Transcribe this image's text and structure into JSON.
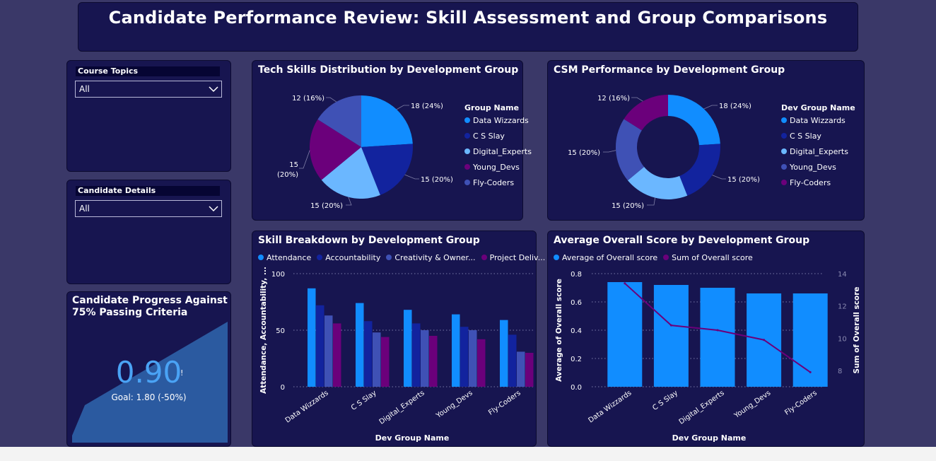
{
  "title": "Candidate Performance Review: Skill Assessment and Group Comparisons",
  "slicers": [
    {
      "label": "Course Topics",
      "value": "All"
    },
    {
      "label": "Candidate Details",
      "value": "All"
    }
  ],
  "kpi": {
    "title": "Candidate Progress Against 75% Passing Criteria",
    "value": "0.90",
    "goal": "Goal: 1.80 (-50%)",
    "colors": {
      "area": "#2b5aa0",
      "value": "#4aa3f5"
    }
  },
  "colors": {
    "Data Wizzards": "#118dff",
    "C S Slay": "#12239e",
    "Digital_Experts": "#6bb7ff",
    "Young_Devs": "#6b007b",
    "Fly-Coders": "#3f51b5"
  },
  "chart_data": [
    {
      "type": "pie",
      "title": "Tech Skills Distribution by Development Group",
      "legend_title": "Group Name",
      "legend": [
        "Data Wizzards",
        "C S Slay",
        "Digital_Experts",
        "Young_Devs",
        "Fly-Coders"
      ],
      "slices": [
        {
          "name": "Data Wizzards",
          "value": 18,
          "label": "18 (24%)",
          "color": "#118dff"
        },
        {
          "name": "C S Slay",
          "value": 15,
          "label": "15 (20%)",
          "color": "#12239e"
        },
        {
          "name": "Digital_Experts",
          "value": 15,
          "label": "15 (20%)",
          "color": "#6bb7ff"
        },
        {
          "name": "Young_Devs",
          "value": 15,
          "label": "15 (20%)",
          "color": "#6b007b"
        },
        {
          "name": "Fly-Coders",
          "value": 12,
          "label": "12 (16%)",
          "color": "#3f51b5"
        }
      ]
    },
    {
      "type": "pie",
      "subtype": "donut",
      "title": "CSM Performance by Development Group",
      "legend_title": "Dev Group Name",
      "legend": [
        "Data Wizzards",
        "C S Slay",
        "Digital_Experts",
        "Young_Devs",
        "Fly-Coders"
      ],
      "slices": [
        {
          "name": "Data Wizzards",
          "value": 18,
          "label": "18 (24%)",
          "color": "#118dff"
        },
        {
          "name": "C S Slay",
          "value": 15,
          "label": "15 (20%)",
          "color": "#12239e"
        },
        {
          "name": "Digital_Experts",
          "value": 15,
          "label": "15 (20%)",
          "color": "#6bb7ff"
        },
        {
          "name": "Young_Devs",
          "value": 15,
          "label": "15 (20%)",
          "color": "#3f51b5"
        },
        {
          "name": "Fly-Coders",
          "value": 12,
          "label": "12 (16%)",
          "color": "#6b007b"
        }
      ]
    },
    {
      "type": "bar",
      "title": "Skill Breakdown by Development Group",
      "xlabel": "Dev Group Name",
      "ylabel": "Attendance, Accountability, ...",
      "ylim": [
        0,
        100
      ],
      "yticks": [
        0,
        50,
        100
      ],
      "categories": [
        "Data Wizzards",
        "C S Slay",
        "Digital_Experts",
        "Young_Devs",
        "Fly-Coders"
      ],
      "series": [
        {
          "name": "Attendance",
          "legend_label": "Attendance",
          "color": "#118dff",
          "values": [
            87,
            74,
            68,
            64,
            59
          ]
        },
        {
          "name": "Accountability",
          "legend_label": "Accountability",
          "color": "#12239e",
          "values": [
            72,
            58,
            56,
            53,
            46
          ]
        },
        {
          "name": "Creativity & Ownership",
          "legend_label": "Creativity & Owner...",
          "color": "#3f51b5",
          "values": [
            63,
            48,
            50,
            50,
            31
          ]
        },
        {
          "name": "Project Delivery",
          "legend_label": "Project Deliv...",
          "color": "#6b007b",
          "values": [
            56,
            44,
            45,
            42,
            30
          ]
        }
      ],
      "legend_position": "top-left",
      "grid": true
    },
    {
      "type": "bar",
      "subtype": "bar-line-combo",
      "title": "Average Overall Score by Development Group",
      "xlabel": "Dev Group Name",
      "ylabel": "Average of Overall score",
      "y2label": "Sum of Overall score",
      "ylim": [
        0,
        0.8
      ],
      "yticks": [
        "0.0",
        "0.2",
        "0.4",
        "0.6",
        "0.8"
      ],
      "y2lim": [
        7,
        14
      ],
      "y2ticks": [
        8,
        10,
        12,
        14
      ],
      "categories": [
        "Data Wizzards",
        "C S Slay",
        "Digital_Experts",
        "Young_Devs",
        "Fly-Coders"
      ],
      "series": [
        {
          "name": "Average of Overall score",
          "type": "bar",
          "color": "#118dff",
          "values": [
            0.74,
            0.72,
            0.7,
            0.66,
            0.66
          ]
        },
        {
          "name": "Sum of Overall score",
          "type": "line",
          "axis": "y2",
          "color": "#6b007b",
          "values": [
            13.4,
            10.8,
            10.5,
            9.9,
            7.9
          ]
        }
      ],
      "legend_position": "top-left",
      "grid": true
    }
  ]
}
